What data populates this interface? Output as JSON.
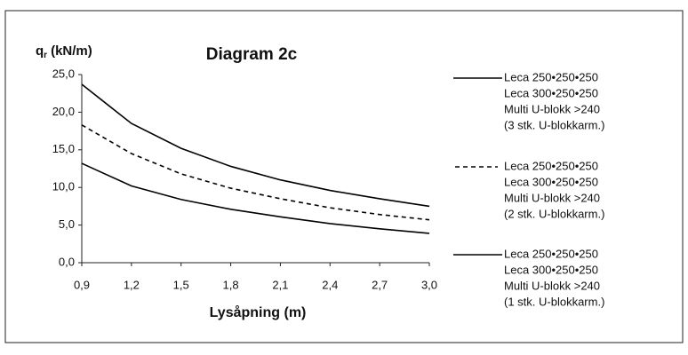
{
  "chart_data": {
    "type": "line",
    "title": "Diagram 2c",
    "y_label": "q",
    "y_label_sub": "r",
    "y_label_unit": "(kN/m)",
    "x_label": "Lysåpning (m)",
    "x": [
      0.9,
      1.2,
      1.5,
      1.8,
      2.1,
      2.4,
      2.7,
      3.0
    ],
    "xlim": [
      0.9,
      3.0
    ],
    "xticks": [
      {
        "value": 0.9,
        "label": "0,9"
      },
      {
        "value": 1.2,
        "label": "1,2"
      },
      {
        "value": 1.5,
        "label": "1,5"
      },
      {
        "value": 1.8,
        "label": "1,8"
      },
      {
        "value": 2.1,
        "label": "2,1"
      },
      {
        "value": 2.4,
        "label": "2,4"
      },
      {
        "value": 2.7,
        "label": "2,7"
      },
      {
        "value": 3.0,
        "label": "3,0"
      }
    ],
    "ylim": [
      0,
      25
    ],
    "yticks": [
      {
        "value": 0,
        "label": "0,0"
      },
      {
        "value": 5,
        "label": "5,0"
      },
      {
        "value": 10,
        "label": "10,0"
      },
      {
        "value": 15,
        "label": "15,0"
      },
      {
        "value": 20,
        "label": "20,0"
      },
      {
        "value": 25,
        "label": "25,0"
      }
    ],
    "grid": false,
    "series": [
      {
        "name": [
          "Leca 250•250•250",
          "Leca 300•250•250",
          "Multi U-blokk >240",
          "(3 stk. U-blokkarm.)"
        ],
        "color": "#000000",
        "dashed": false,
        "values": [
          23.7,
          18.5,
          15.2,
          12.8,
          11.0,
          9.6,
          8.5,
          7.5
        ]
      },
      {
        "name": [
          "Leca 250•250•250",
          "Leca 300•250•250",
          "Multi U-blokk >240",
          "(2 stk. U-blokkarm.)"
        ],
        "color": "#000000",
        "dashed": true,
        "values": [
          18.3,
          14.5,
          11.8,
          9.9,
          8.5,
          7.3,
          6.4,
          5.7
        ]
      },
      {
        "name": [
          "Leca 250•250•250",
          "Leca 300•250•250",
          "Multi U-blokk >240",
          "(1 stk. U-blokkarm.)"
        ],
        "color": "#000000",
        "dashed": false,
        "values": [
          13.2,
          10.2,
          8.4,
          7.1,
          6.1,
          5.2,
          4.5,
          3.9
        ]
      }
    ]
  }
}
